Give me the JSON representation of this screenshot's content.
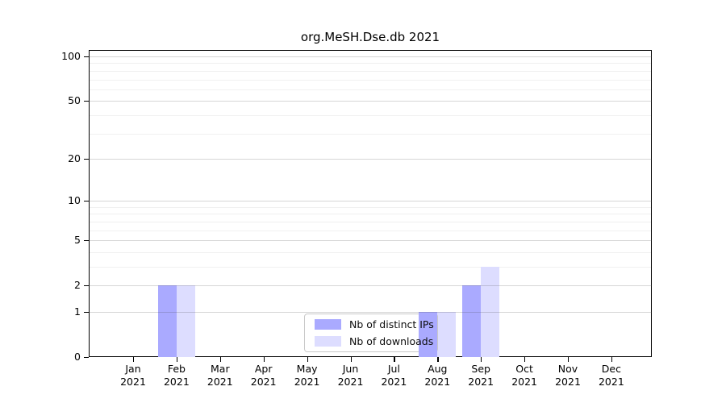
{
  "title": "org.MeSH.Dse.db 2021",
  "legend": {
    "items": [
      {
        "label": "Nb of distinct IPs",
        "color": "#aaaaff"
      },
      {
        "label": "Nb of downloads",
        "color": "#ddddff"
      }
    ]
  },
  "colors": {
    "distinct_ips_bar": "#aaaaff",
    "downloads_bar": "#ddddff",
    "axis": "#000000",
    "major_grid": "#d6d6d6",
    "minor_grid": "#efefef",
    "legend_border": "#c9c9c9",
    "background": "#ffffff"
  },
  "chart_data": {
    "type": "bar",
    "title": "org.MeSH.Dse.db 2021",
    "categories": [
      "Jan 2021",
      "Feb 2021",
      "Mar 2021",
      "Apr 2021",
      "May 2021",
      "Jun 2021",
      "Jul 2021",
      "Aug 2021",
      "Sep 2021",
      "Oct 2021",
      "Nov 2021",
      "Dec 2021"
    ],
    "x_tick_line1": [
      "Jan",
      "Feb",
      "Mar",
      "Apr",
      "May",
      "Jun",
      "Jul",
      "Aug",
      "Sep",
      "Oct",
      "Nov",
      "Dec"
    ],
    "x_tick_line2": [
      "2021",
      "2021",
      "2021",
      "2021",
      "2021",
      "2021",
      "2021",
      "2021",
      "2021",
      "2021",
      "2021",
      "2021"
    ],
    "series": [
      {
        "name": "Nb of distinct IPs",
        "color": "#aaaaff",
        "values": [
          0,
          2,
          0,
          0,
          0,
          0,
          0,
          1,
          2,
          0,
          0,
          0
        ]
      },
      {
        "name": "Nb of downloads",
        "color": "#ddddff",
        "values": [
          0,
          2,
          0,
          0,
          0,
          0,
          0,
          1,
          3,
          0,
          0,
          0
        ]
      }
    ],
    "yscale": "log10(value+1)",
    "yticks": [
      0,
      1,
      2,
      5,
      10,
      20,
      50,
      100
    ],
    "ytick_labels": [
      "0",
      "1",
      "2",
      "5",
      "10",
      "20",
      "50",
      "100"
    ],
    "minor_yticks": [
      3,
      4,
      6,
      7,
      8,
      9,
      30,
      40,
      60,
      70,
      80,
      90
    ],
    "ylim": [
      0,
      110
    ],
    "xlabel": "",
    "ylabel": "",
    "grid": true,
    "legend_position": "inside lower-center"
  }
}
